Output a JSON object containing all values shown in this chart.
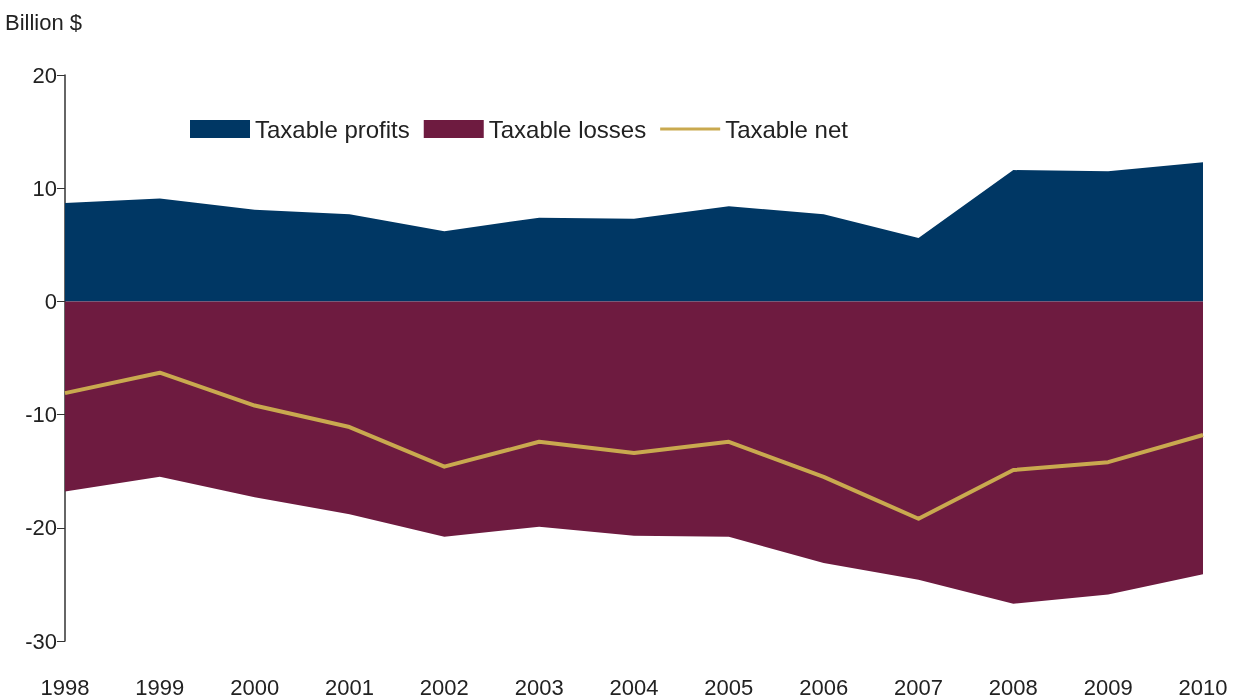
{
  "chart_data": {
    "type": "area",
    "ylabel": "Billion $",
    "categories": [
      "1998",
      "1999",
      "2000",
      "2001",
      "2002",
      "2003",
      "2004",
      "2005",
      "2006",
      "2007",
      "2008",
      "2009",
      "2010"
    ],
    "series": [
      {
        "name": "Taxable profits",
        "color": "#003764",
        "values": [
          8.7,
          9.1,
          8.1,
          7.7,
          6.2,
          7.4,
          7.3,
          8.4,
          7.7,
          5.6,
          11.6,
          11.5,
          12.3
        ]
      },
      {
        "name": "Taxable losses",
        "color": "#6e1b40",
        "values": [
          -16.8,
          -15.5,
          -17.3,
          -18.8,
          -20.8,
          -19.9,
          -20.7,
          -20.8,
          -23.1,
          -24.6,
          -26.7,
          -25.9,
          -24.1
        ]
      },
      {
        "name": "Taxable net",
        "type": "line",
        "color": "#c9a94f",
        "values": [
          -8.1,
          -6.3,
          -9.2,
          -11.1,
          -14.6,
          -12.4,
          -13.4,
          -12.4,
          -15.5,
          -19.2,
          -14.9,
          -14.2,
          -11.8
        ]
      }
    ],
    "ylim": [
      -30,
      20
    ],
    "yticks": [
      -30,
      -20,
      -10,
      0,
      10,
      20
    ],
    "grid": false,
    "legend": "top",
    "marker": "none"
  }
}
